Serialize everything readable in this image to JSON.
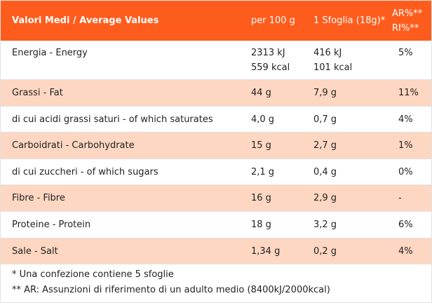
{
  "header": {
    "label": "Valori Medi / Average Values",
    "per_100g": "per 100 g",
    "per_serving": "1 Sfoglia (18g)*",
    "reference": [
      "AR%**",
      "RI%**"
    ]
  },
  "rows": [
    {
      "label": "Energia - Energy",
      "per_100g": [
        "2313 kJ",
        "559 kcal"
      ],
      "per_serving": [
        "416 kJ",
        "101 kcal"
      ],
      "reference": "5%"
    },
    {
      "label": "Grassi - Fat",
      "per_100g": "44 g",
      "per_serving": "7,9 g",
      "reference": "11%"
    },
    {
      "label": "di cui acidi grassi saturi - of which saturates",
      "per_100g": "4,0 g",
      "per_serving": "0,7 g",
      "reference": "4%"
    },
    {
      "label": "Carboidrati - Carbohydrate",
      "per_100g": "15 g",
      "per_serving": "2,7 g",
      "reference": "1%"
    },
    {
      "label": "di cui zuccheri - of which sugars",
      "per_100g": "2,1 g",
      "per_serving": "0,4 g",
      "reference": "0%"
    },
    {
      "label": "Fibre - Fibre",
      "per_100g": "16 g",
      "per_serving": "2,9 g",
      "reference": "-"
    },
    {
      "label": "Proteine - Protein",
      "per_100g": "18 g",
      "per_serving": "3,2 g",
      "reference": "6%"
    },
    {
      "label": "Sale - Salt",
      "per_100g": "1,34 g",
      "per_serving": "0,2 g",
      "reference": "4%"
    }
  ],
  "footnotes": [
    "* Una confezione contiene 5 sfoglie",
    "** AR: Assunzioni di riferimento di un adulto medio (8400kJ/2000kcal)"
  ]
}
